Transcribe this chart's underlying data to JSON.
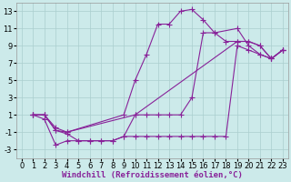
{
  "background_color": "#cceaea",
  "grid_color": "#aacece",
  "line_color": "#882299",
  "marker": "+",
  "markersize": 4,
  "linewidth": 0.8,
  "xlabel": "Windchill (Refroidissement éolien,°C)",
  "xlabel_fontsize": 6.5,
  "tick_fontsize": 6,
  "xlim": [
    -0.5,
    23.5
  ],
  "ylim": [
    -4,
    14
  ],
  "yticks": [
    -3,
    -1,
    1,
    3,
    5,
    7,
    9,
    11,
    13
  ],
  "xticks": [
    0,
    1,
    2,
    3,
    4,
    5,
    6,
    7,
    8,
    9,
    10,
    11,
    12,
    13,
    14,
    15,
    16,
    17,
    18,
    19,
    20,
    21,
    22,
    23
  ],
  "curves": [
    {
      "x": [
        1,
        2,
        3,
        4,
        9,
        10,
        11,
        12,
        13,
        14,
        15,
        16,
        17,
        19,
        20,
        21,
        22,
        23
      ],
      "y": [
        1,
        1,
        -0.5,
        -1,
        1,
        5,
        8,
        11.5,
        11.5,
        13,
        13.2,
        12,
        10.5,
        11,
        9,
        8,
        7.5,
        8.5
      ]
    },
    {
      "x": [
        1,
        2,
        3,
        4,
        10,
        11,
        12,
        13,
        14,
        15,
        16,
        17,
        18,
        19,
        20,
        21,
        22,
        23
      ],
      "y": [
        1,
        1,
        -0.8,
        -1,
        1,
        1,
        1,
        1,
        1,
        3,
        10.5,
        10.5,
        9.5,
        9.5,
        9.5,
        9,
        7.5,
        8.5
      ]
    },
    {
      "x": [
        1,
        2,
        3,
        4,
        5,
        6,
        7,
        8,
        9,
        10,
        19,
        20,
        21,
        22,
        23
      ],
      "y": [
        1,
        1,
        -0.8,
        -1.2,
        -2,
        -2,
        -2,
        -2,
        -1.5,
        1,
        9.5,
        9.5,
        9,
        7.5,
        8.5
      ]
    },
    {
      "x": [
        1,
        2,
        3,
        4,
        5,
        6,
        7,
        8,
        9,
        10,
        11,
        12,
        13,
        14,
        15,
        16,
        17,
        18,
        19,
        20,
        21,
        22,
        23
      ],
      "y": [
        1,
        0.5,
        -2.5,
        -2,
        -2,
        -2,
        -2,
        -2,
        -1.5,
        -1.5,
        -1.5,
        -1.5,
        -1.5,
        -1.5,
        -1.5,
        -1.5,
        -1.5,
        -1.5,
        9,
        8.5,
        8,
        7.5,
        8.5
      ]
    }
  ]
}
